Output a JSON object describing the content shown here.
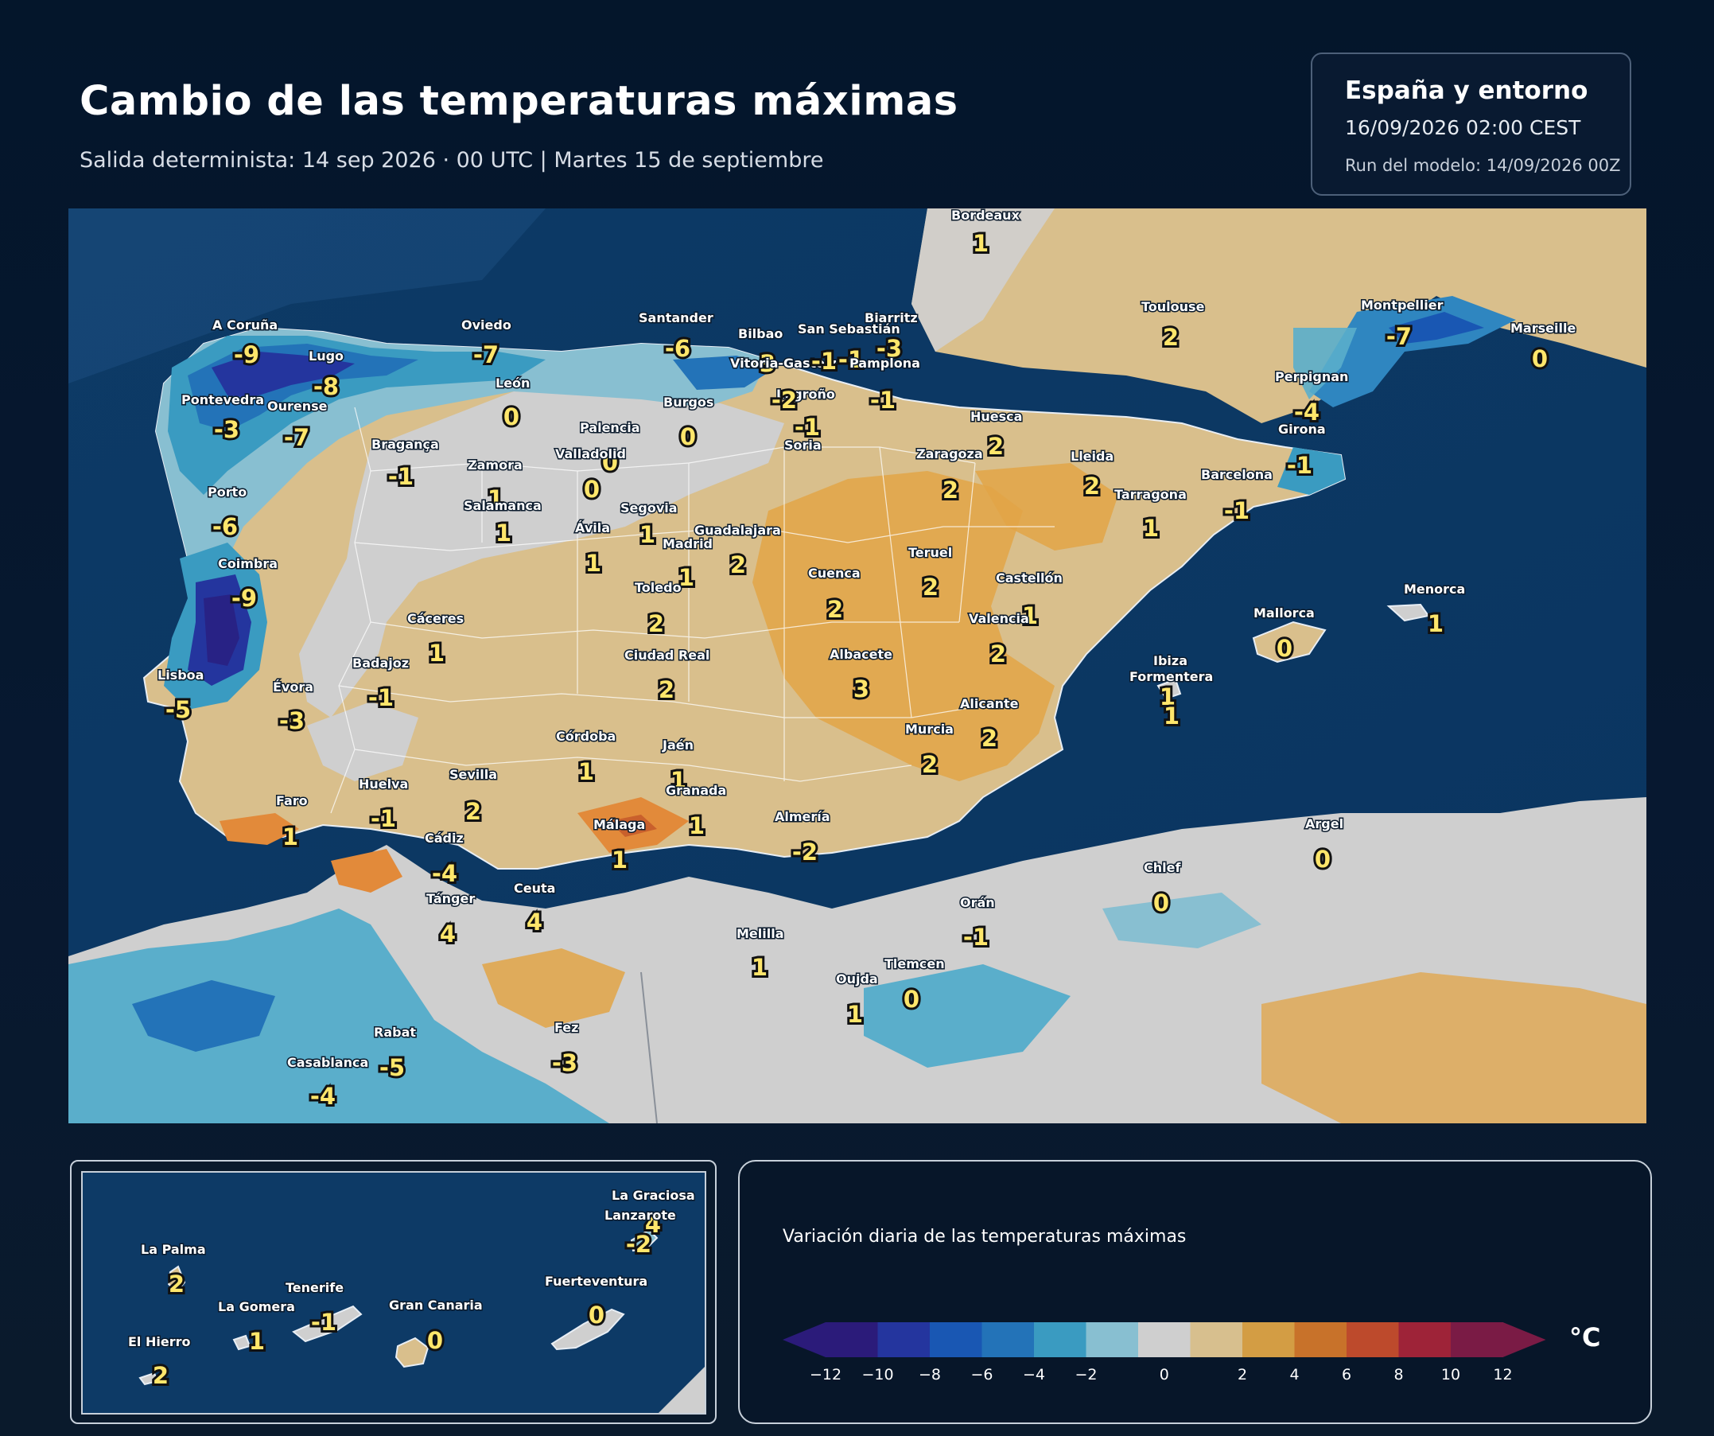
{
  "header": {
    "title": "Cambio de las temperaturas máximas",
    "subtitle": "Salida determinista: 14 sep 2026 · 00 UTC  |  Martes 15 de septiembre"
  },
  "region_box": {
    "name": "España y entorno",
    "valid_time": "16/09/2026  02:00 CEST",
    "run": "Run del modelo: 14/09/2026 00Z"
  },
  "map": {
    "variable": "Variación diaria de las temperaturas máximas",
    "points": [
      {
        "name": "Bordeaux",
        "value": "1"
      },
      {
        "name": "A Coruña",
        "value": "-9"
      },
      {
        "name": "Lugo",
        "value": "-8"
      },
      {
        "name": "Oviedo",
        "value": "-7"
      },
      {
        "name": "Santander",
        "value": "-6"
      },
      {
        "name": "Bilbao",
        "value": "-3"
      },
      {
        "name": "San Sebastián",
        "value": "-1"
      },
      {
        "name": "Biarritz",
        "value": "-3"
      },
      {
        "name": "Vitoria-Gasteiz",
        "value": "-1"
      },
      {
        "name": "Pamplona",
        "value": "-1"
      },
      {
        "name": "Toulouse",
        "value": "2"
      },
      {
        "name": "Montpellier",
        "value": "-7"
      },
      {
        "name": "Marseille",
        "value": "0"
      },
      {
        "name": "Pontevedra",
        "value": "-3"
      },
      {
        "name": "Ourense",
        "value": "-7"
      },
      {
        "name": "León",
        "value": "0"
      },
      {
        "name": "Burgos",
        "value": "0"
      },
      {
        "name": "Logroño",
        "value": "-2"
      },
      {
        "name": "Palencia",
        "value": "0"
      },
      {
        "name": "Soria",
        "value": "-1"
      },
      {
        "name": "Huesca",
        "value": "2"
      },
      {
        "name": "Perpignan",
        "value": "-4"
      },
      {
        "name": "Girona",
        "value": "-1"
      },
      {
        "name": "Bragança",
        "value": "-1"
      },
      {
        "name": "Valladolid",
        "value": "0"
      },
      {
        "name": "Zaragoza",
        "value": "2"
      },
      {
        "name": "Lleida",
        "value": "2"
      },
      {
        "name": "Barcelona",
        "value": "-1"
      },
      {
        "name": "Zamora",
        "value": "1"
      },
      {
        "name": "Porto",
        "value": "-6"
      },
      {
        "name": "Salamanca",
        "value": "1"
      },
      {
        "name": "Segovia",
        "value": "1"
      },
      {
        "name": "Tarragona",
        "value": "1"
      },
      {
        "name": "Ávila",
        "value": "1"
      },
      {
        "name": "Guadalajara",
        "value": "2"
      },
      {
        "name": "Madrid",
        "value": "1"
      },
      {
        "name": "Teruel",
        "value": "2"
      },
      {
        "name": "Coimbra",
        "value": "-9"
      },
      {
        "name": "Cuenca",
        "value": "2"
      },
      {
        "name": "Toledo",
        "value": "2"
      },
      {
        "name": "Castellón",
        "value": "1"
      },
      {
        "name": "Valencia",
        "value": "2"
      },
      {
        "name": "Menorca",
        "value": "1"
      },
      {
        "name": "Mallorca",
        "value": "0"
      },
      {
        "name": "Cáceres",
        "value": "1"
      },
      {
        "name": "Ciudad Real",
        "value": "2"
      },
      {
        "name": "Albacete",
        "value": "3"
      },
      {
        "name": "Badajoz",
        "value": "-1"
      },
      {
        "name": "Lisboa",
        "value": "-5"
      },
      {
        "name": "Évora",
        "value": "-3"
      },
      {
        "name": "Ibiza",
        "value": "1"
      },
      {
        "name": "Formentera",
        "value": "1"
      },
      {
        "name": "Alicante",
        "value": "2"
      },
      {
        "name": "Murcia",
        "value": "2"
      },
      {
        "name": "Córdoba",
        "value": "1"
      },
      {
        "name": "Jaén",
        "value": "1"
      },
      {
        "name": "Huelva",
        "value": "-1"
      },
      {
        "name": "Sevilla",
        "value": "2"
      },
      {
        "name": "Granada",
        "value": "1"
      },
      {
        "name": "Faro",
        "value": "1"
      },
      {
        "name": "Almería",
        "value": "-2"
      },
      {
        "name": "Málaga",
        "value": "1"
      },
      {
        "name": "Cádiz",
        "value": "-4"
      },
      {
        "name": "Argel",
        "value": "0"
      },
      {
        "name": "Ceuta",
        "value": "4"
      },
      {
        "name": "Chlef",
        "value": "0"
      },
      {
        "name": "Tánger",
        "value": "4"
      },
      {
        "name": "Orán",
        "value": "-1"
      },
      {
        "name": "Melilla",
        "value": "1"
      },
      {
        "name": "Tlemcen",
        "value": "0"
      },
      {
        "name": "Oujda",
        "value": "1"
      },
      {
        "name": "Rabat",
        "value": "-5"
      },
      {
        "name": "Fez",
        "value": "-3"
      },
      {
        "name": "Casablanca",
        "value": "-4"
      }
    ]
  },
  "canarias": {
    "points": [
      {
        "name": "La Graciosa",
        "value": "4"
      },
      {
        "name": "Lanzarote",
        "value": "-2"
      },
      {
        "name": "La Palma",
        "value": "2"
      },
      {
        "name": "Fuerteventura",
        "value": "0"
      },
      {
        "name": "Tenerife",
        "value": "-1"
      },
      {
        "name": "Gran Canaria",
        "value": "0"
      },
      {
        "name": "La Gomera",
        "value": "1"
      },
      {
        "name": "El Hierro",
        "value": "2"
      }
    ]
  },
  "legend": {
    "title": "Variación diaria de las temperaturas máximas",
    "unit": "°C",
    "ticks": [
      "−12",
      "−10",
      "−8",
      "−6",
      "−4",
      "−2",
      "0",
      "2",
      "4",
      "6",
      "8",
      "10",
      "12"
    ],
    "colors": [
      "#2b1b7a",
      "#24359e",
      "#1957b3",
      "#2373b8",
      "#3a9bc1",
      "#88bfd1",
      "#cfcfcf",
      "#d7bf8e",
      "#d39d44",
      "#c8722a",
      "#bd4a2c",
      "#9e2338",
      "#7a1b45"
    ]
  }
}
